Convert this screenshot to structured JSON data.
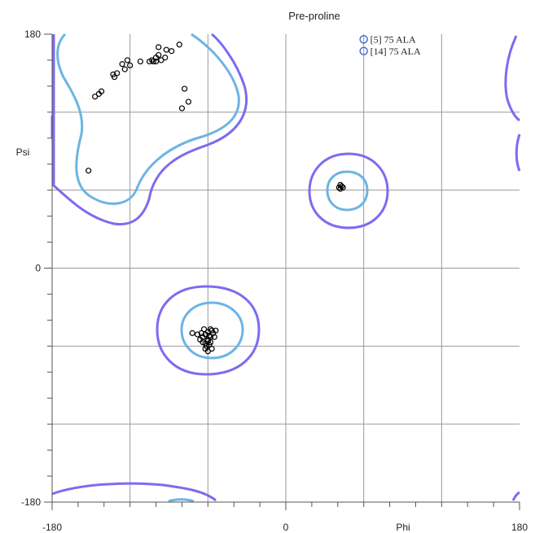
{
  "chart_data": {
    "type": "scatter",
    "title": "Pre-proline",
    "xlabel": "Phi",
    "ylabel": "Psi",
    "xlim": [
      -180,
      180
    ],
    "ylim": [
      -180,
      180
    ],
    "x_tick_labels": [
      "-180",
      "0",
      "180"
    ],
    "y_tick_labels": [
      "180",
      "0",
      "-180"
    ],
    "x_tick_values": [
      -180,
      0,
      180
    ],
    "y_tick_values": [
      180,
      0,
      -180
    ],
    "grid": true,
    "colors": {
      "allowed_contour": "#7b6cf0",
      "favored_contour": "#6cb4e4",
      "points": "#000000",
      "outlier_marker": "#4a6fd4",
      "grid": "#999999"
    },
    "outliers": [
      {
        "label": "[5]   75 ALA",
        "phi": 60,
        "psi": 176
      },
      {
        "label": "[14]   75 ALA",
        "phi": 60,
        "psi": 167
      }
    ],
    "series": [
      {
        "points": [
          [
            -82,
            172
          ],
          [
            -88,
            167
          ],
          [
            -96,
            160
          ],
          [
            -98,
            164
          ],
          [
            -100,
            162
          ],
          [
            -100,
            159
          ],
          [
            -102,
            159
          ],
          [
            -103,
            160
          ],
          [
            -105,
            159
          ],
          [
            -112,
            159
          ],
          [
            -120,
            156
          ],
          [
            -124,
            153
          ],
          [
            -126,
            157
          ],
          [
            -130,
            150
          ],
          [
            -122,
            160
          ],
          [
            -133,
            149
          ],
          [
            -132,
            147
          ],
          [
            -142,
            136
          ],
          [
            -144,
            134
          ],
          [
            -147,
            132
          ],
          [
            -80,
            123
          ],
          [
            -75,
            128
          ],
          [
            -78,
            138
          ],
          [
            -152,
            75
          ],
          [
            -93,
            162
          ],
          [
            -92,
            168
          ],
          [
            -98,
            170
          ],
          [
            42,
            64
          ],
          [
            43,
            63
          ],
          [
            41,
            62
          ],
          [
            44,
            62
          ],
          [
            42,
            61
          ],
          [
            -58,
            -47
          ],
          [
            -57,
            -48
          ],
          [
            -60,
            -49
          ],
          [
            -62,
            -51
          ],
          [
            -64,
            -53
          ],
          [
            -66,
            -55
          ],
          [
            -60,
            -55
          ],
          [
            -58,
            -57
          ],
          [
            -62,
            -58
          ],
          [
            -56,
            -50
          ],
          [
            -54,
            -48
          ],
          [
            -59,
            -52
          ],
          [
            -63,
            -47
          ],
          [
            -65,
            -50
          ],
          [
            -61,
            -60
          ],
          [
            -60,
            -64
          ],
          [
            -57,
            -62
          ],
          [
            -68,
            -51
          ],
          [
            -72,
            -50
          ],
          [
            -60,
            -56
          ],
          [
            -58,
            -53
          ],
          [
            -55,
            -53
          ],
          [
            -64,
            -57
          ],
          [
            -62,
            -62
          ],
          [
            -59,
            -59
          ]
        ]
      }
    ]
  }
}
